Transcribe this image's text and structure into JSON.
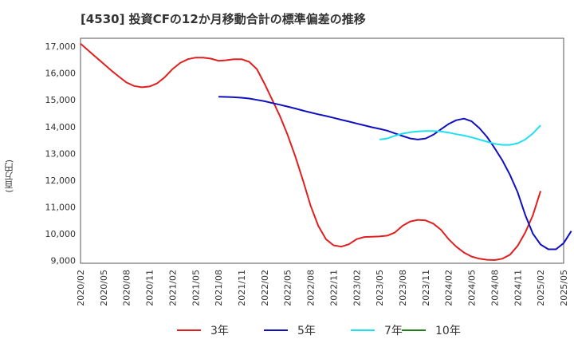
{
  "chart_data": {
    "type": "line",
    "title": "[4530]  投資CFの12か月移動合計の標準偏差の推移",
    "ylabel": "(百万円)",
    "xlabel": "",
    "ylim": [
      8900,
      17300
    ],
    "yticks": [
      9000,
      10000,
      11000,
      12000,
      13000,
      14000,
      15000,
      16000,
      17000
    ],
    "ytick_labels": [
      "9,000",
      "10,000",
      "11,000",
      "12,000",
      "13,000",
      "14,000",
      "15,000",
      "16,000",
      "17,000"
    ],
    "xticks": [
      "2020/02",
      "2020/05",
      "2020/08",
      "2020/11",
      "2021/02",
      "2021/05",
      "2021/08",
      "2021/11",
      "2022/02",
      "2022/05",
      "2022/08",
      "2022/11",
      "2023/02",
      "2023/05",
      "2023/08",
      "2023/11",
      "2024/02",
      "2024/05",
      "2024/08",
      "2024/11",
      "2025/02",
      "2025/05"
    ],
    "x_start": "2020/02",
    "grid": true,
    "legend_position": "bottom",
    "series": [
      {
        "name": "3年",
        "color": "#e02020",
        "start": "2020/02",
        "values": [
          17100,
          16850,
          16600,
          16350,
          16100,
          15870,
          15650,
          15520,
          15470,
          15500,
          15620,
          15850,
          16150,
          16380,
          16520,
          16580,
          16580,
          16540,
          16460,
          16480,
          16520,
          16520,
          16420,
          16150,
          15600,
          15000,
          14400,
          13700,
          12900,
          12000,
          11050,
          10300,
          9800,
          9570,
          9520,
          9610,
          9800,
          9880,
          9890,
          9900,
          9930,
          10050,
          10300,
          10460,
          10520,
          10500,
          10380,
          10150,
          9800,
          9520,
          9300,
          9150,
          9070,
          9030,
          9020,
          9070,
          9220,
          9550,
          10050,
          10700,
          11600
        ]
      },
      {
        "name": "5年",
        "color": "#1010c0",
        "start": "2021/08",
        "values": [
          15120,
          15110,
          15100,
          15080,
          15050,
          15000,
          14950,
          14880,
          14820,
          14750,
          14680,
          14600,
          14530,
          14460,
          14400,
          14330,
          14260,
          14190,
          14120,
          14050,
          13980,
          13920,
          13850,
          13750,
          13650,
          13560,
          13520,
          13560,
          13700,
          13900,
          14100,
          14240,
          14300,
          14200,
          13950,
          13620,
          13200,
          12750,
          12200,
          11550,
          10700,
          10000,
          9600,
          9420,
          9420,
          9650,
          10100
        ]
      },
      {
        "name": "7年",
        "color": "#20e0f0",
        "start": "2023/05",
        "values": [
          13520,
          13560,
          13660,
          13740,
          13790,
          13820,
          13840,
          13840,
          13820,
          13780,
          13720,
          13670,
          13600,
          13520,
          13440,
          13360,
          13320,
          13320,
          13380,
          13520,
          13750,
          14050
        ]
      },
      {
        "name": "10年",
        "color": "#208020",
        "start": "2020/02",
        "values": []
      }
    ]
  }
}
